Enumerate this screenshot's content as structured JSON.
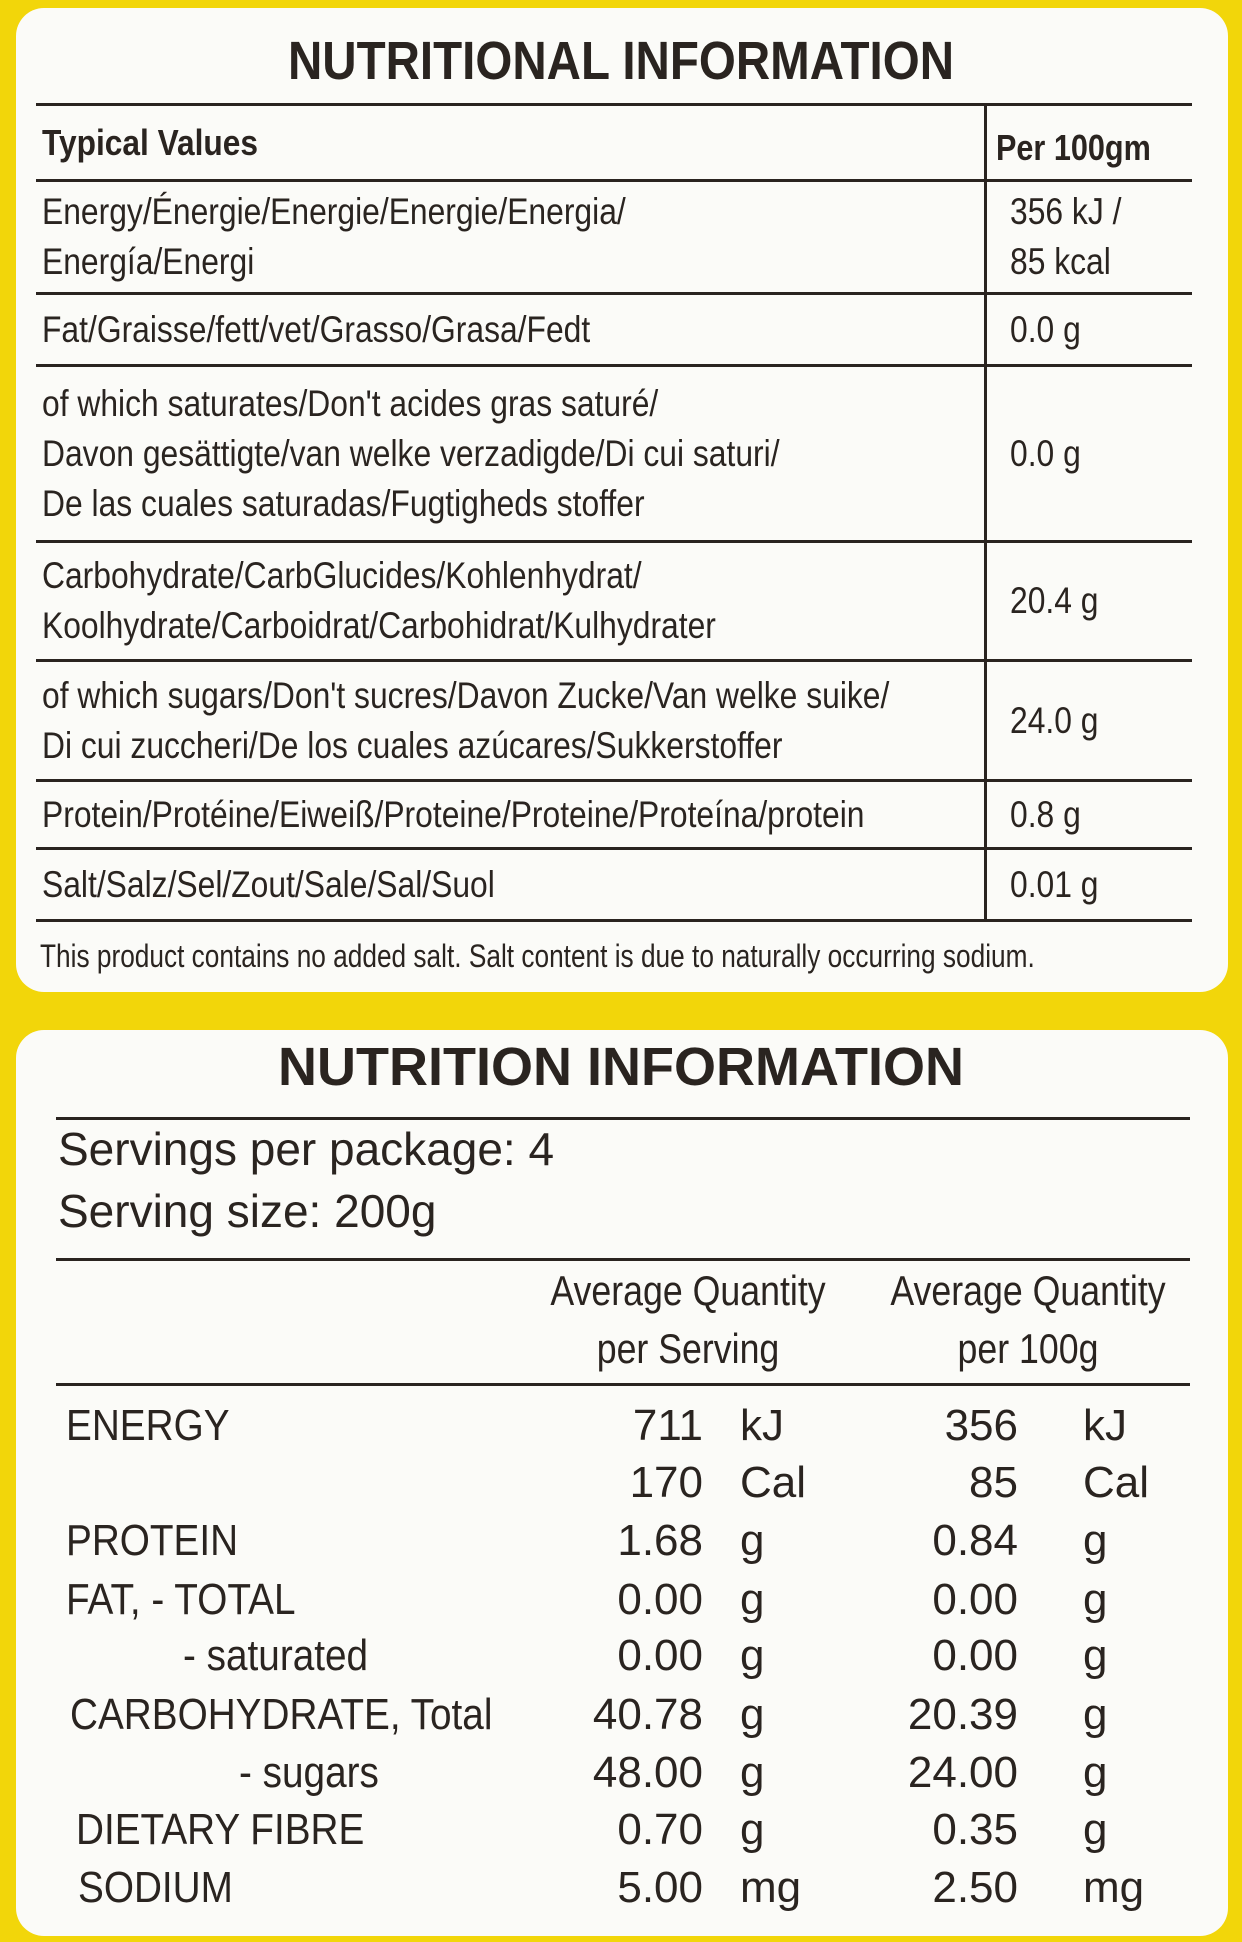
{
  "panel1": {
    "title": "NUTRITIONAL INFORMATION",
    "header": {
      "label": "Typical Values",
      "value": "Per 100gm"
    },
    "rows": [
      {
        "label": [
          "Energy/Énergie/Energie/Energie/Energia/",
          "Energía/Energi"
        ],
        "value": [
          "356 kJ /",
          "85 kcal"
        ]
      },
      {
        "label": [
          "Fat/Graisse/fett/vet/Grasso/Grasa/Fedt"
        ],
        "value": [
          "0.0 g"
        ]
      },
      {
        "label": [
          "of which saturates/Don't acides gras saturé/",
          "Davon gesättigte/van welke verzadigde/Di cui saturi/",
          "De las cuales saturadas/Fugtigheds stoffer"
        ],
        "value": [
          "0.0 g"
        ]
      },
      {
        "label": [
          "Carbohydrate/CarbGlucides/Kohlenhydrat/",
          "Koolhydrate/Carboidrat/Carbohidrat/Kulhydrater"
        ],
        "value": [
          "20.4 g"
        ]
      },
      {
        "label": [
          "of which sugars/Don't sucres/Davon Zucke/Van welke suike/",
          "Di cui zuccheri/De los cuales azúcares/Sukkerstoffer"
        ],
        "value": [
          "24.0 g"
        ]
      },
      {
        "label": [
          "Protein/Protéine/Eiweiß/Proteine/Proteine/Proteína/protein"
        ],
        "value": [
          "0.8 g"
        ]
      },
      {
        "label": [
          "Salt/Salz/Sel/Zout/Sale/Sal/Suol"
        ],
        "value": [
          "0.01 g"
        ]
      }
    ],
    "footnote": "This product contains no added salt. Salt content is due to naturally occurring sodium."
  },
  "panel2": {
    "title": "NUTRITION INFORMATION",
    "servings": "Servings per package: 4",
    "serving_size": "Serving size: 200g",
    "columns": [
      [
        "Average Quantity",
        "per Serving"
      ],
      [
        "Average Quantity",
        "per 100g"
      ]
    ],
    "rows": [
      {
        "name": "ENERGY",
        "serving": "711",
        "serving_unit": "kJ",
        "per100": "356",
        "per100_unit": "kJ"
      },
      {
        "serving": "170",
        "serving_unit": "Cal",
        "per100": "85",
        "per100_unit": "Cal"
      },
      {
        "name": "PROTEIN",
        "serving": "1.68",
        "serving_unit": "g",
        "per100": "0.84",
        "per100_unit": "g"
      },
      {
        "name": "FAT, - TOTAL",
        "serving": "0.00",
        "serving_unit": "g",
        "per100": "0.00",
        "per100_unit": "g"
      },
      {
        "name": "- saturated",
        "serving": "0.00",
        "serving_unit": "g",
        "per100": "0.00",
        "per100_unit": "g"
      },
      {
        "name": "CARBOHYDRATE, Total",
        "serving": "40.78",
        "serving_unit": "g",
        "per100": "20.39",
        "per100_unit": "g"
      },
      {
        "name": "- sugars",
        "serving": "48.00",
        "serving_unit": "g",
        "per100": "24.00",
        "per100_unit": "g"
      },
      {
        "name": "DIETARY FIBRE",
        "serving": "0.70",
        "serving_unit": "g",
        "per100": "0.35",
        "per100_unit": "g"
      },
      {
        "name": "SODIUM",
        "serving": "5.00",
        "serving_unit": "mg",
        "per100": "2.50",
        "per100_unit": "mg"
      }
    ]
  }
}
